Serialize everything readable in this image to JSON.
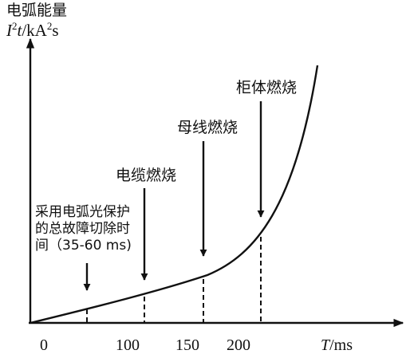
{
  "y_axis": {
    "title": "电弧能量",
    "unit_sym_I": "I",
    "unit_exp": "2",
    "unit_sym_t": "t",
    "unit_rest_1": "/kA",
    "unit_rest_2": "s"
  },
  "x_axis": {
    "unit_sym": "T",
    "unit_rest": "/ms",
    "ticks": [
      "0",
      "100",
      "150",
      "200"
    ]
  },
  "annotations": {
    "protection_note": "采用电弧光保护\n的总故障切除时\n间（35-60 ms)",
    "cable": "电缆燃烧",
    "busbar": "母线燃烧",
    "cabinet": "柜体燃烧"
  },
  "colors": {
    "ink": "#111111",
    "background": "#ffffff"
  }
}
